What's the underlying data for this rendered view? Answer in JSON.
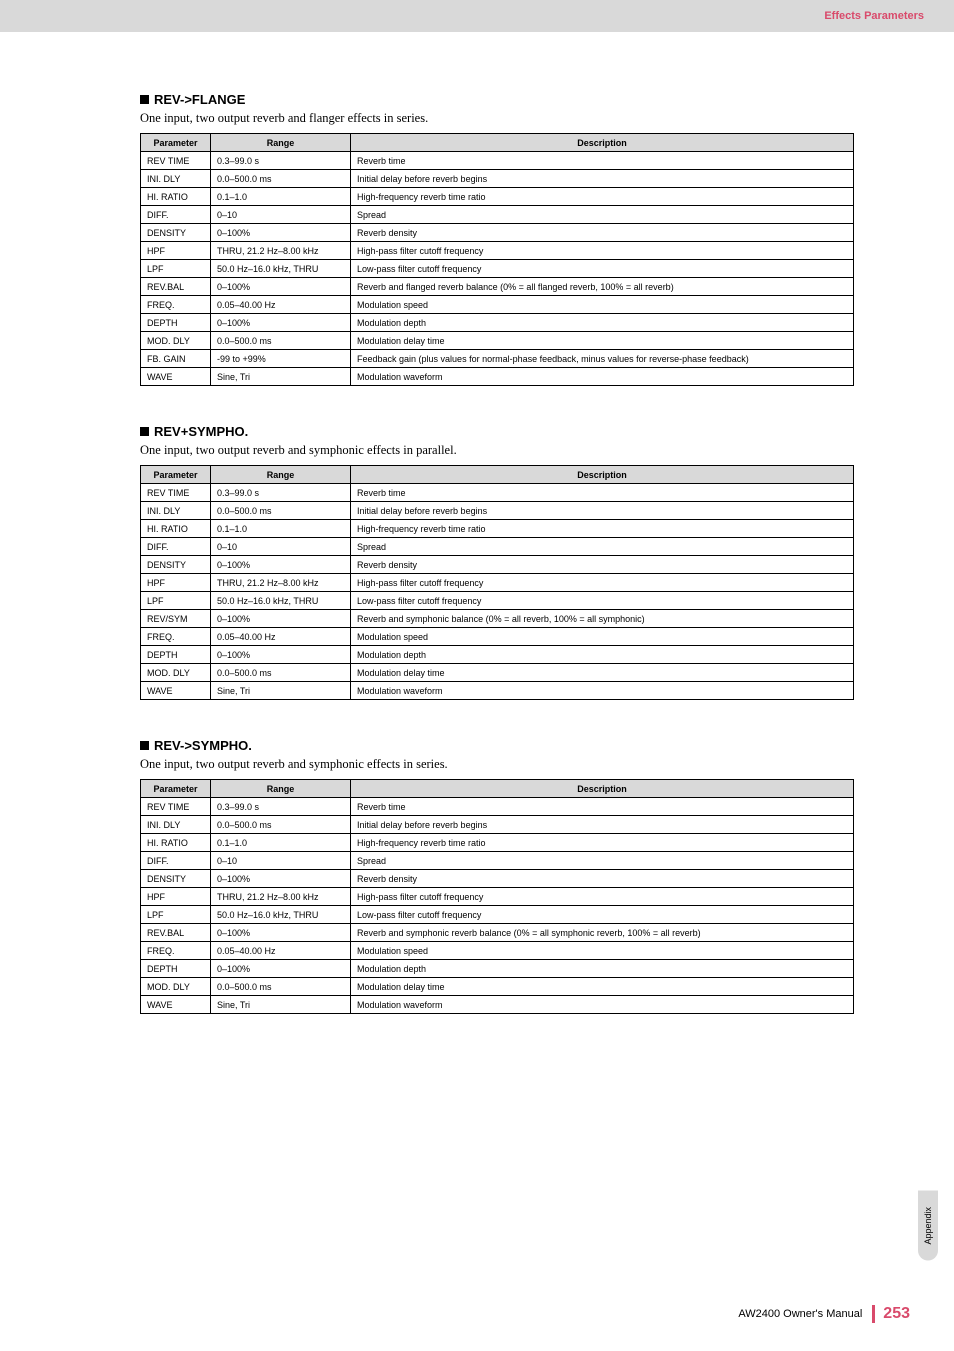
{
  "header": {
    "section": "Effects Parameters"
  },
  "sections": [
    {
      "title": "REV->FLANGE",
      "desc": "One input, two output reverb and flanger effects in series.",
      "cols": [
        "Parameter",
        "Range",
        "Description"
      ],
      "rows": [
        [
          "REV TIME",
          "0.3–99.0 s",
          "Reverb time"
        ],
        [
          "INI. DLY",
          "0.0–500.0 ms",
          "Initial delay before reverb begins"
        ],
        [
          "HI. RATIO",
          "0.1–1.0",
          "High-frequency reverb time ratio"
        ],
        [
          "DIFF.",
          "0–10",
          "Spread"
        ],
        [
          "DENSITY",
          "0–100%",
          "Reverb density"
        ],
        [
          "HPF",
          "THRU, 21.2 Hz–8.00 kHz",
          "High-pass filter cutoff frequency"
        ],
        [
          "LPF",
          "50.0 Hz–16.0 kHz, THRU",
          "Low-pass filter cutoff frequency"
        ],
        [
          "REV.BAL",
          "0–100%",
          "Reverb and flanged reverb balance (0% = all flanged reverb, 100% = all reverb)"
        ],
        [
          "FREQ.",
          "0.05–40.00 Hz",
          "Modulation speed"
        ],
        [
          "DEPTH",
          "0–100%",
          "Modulation depth"
        ],
        [
          "MOD. DLY",
          "0.0–500.0 ms",
          "Modulation delay time"
        ],
        [
          "FB. GAIN",
          "-99 to +99%",
          "Feedback gain (plus values for normal-phase feedback, minus values for reverse-phase feedback)"
        ],
        [
          "WAVE",
          "Sine, Tri",
          "Modulation waveform"
        ]
      ]
    },
    {
      "title": "REV+SYMPHO.",
      "desc": "One input, two output reverb and symphonic effects in parallel.",
      "cols": [
        "Parameter",
        "Range",
        "Description"
      ],
      "rows": [
        [
          "REV TIME",
          "0.3–99.0 s",
          "Reverb time"
        ],
        [
          "INI. DLY",
          "0.0–500.0 ms",
          "Initial delay before reverb begins"
        ],
        [
          "HI. RATIO",
          "0.1–1.0",
          "High-frequency reverb time ratio"
        ],
        [
          "DIFF.",
          "0–10",
          "Spread"
        ],
        [
          "DENSITY",
          "0–100%",
          "Reverb density"
        ],
        [
          "HPF",
          "THRU, 21.2 Hz–8.00 kHz",
          "High-pass filter cutoff frequency"
        ],
        [
          "LPF",
          "50.0 Hz–16.0 kHz, THRU",
          "Low-pass filter cutoff frequency"
        ],
        [
          "REV/SYM",
          "0–100%",
          "Reverb and symphonic balance (0% = all reverb, 100% = all symphonic)"
        ],
        [
          "FREQ.",
          "0.05–40.00 Hz",
          "Modulation speed"
        ],
        [
          "DEPTH",
          "0–100%",
          "Modulation depth"
        ],
        [
          "MOD. DLY",
          "0.0–500.0 ms",
          "Modulation delay time"
        ],
        [
          "WAVE",
          "Sine, Tri",
          "Modulation waveform"
        ]
      ]
    },
    {
      "title": "REV->SYMPHO.",
      "desc": "One input, two output reverb and symphonic effects in series.",
      "cols": [
        "Parameter",
        "Range",
        "Description"
      ],
      "rows": [
        [
          "REV TIME",
          "0.3–99.0 s",
          "Reverb time"
        ],
        [
          "INI. DLY",
          "0.0–500.0 ms",
          "Initial delay before reverb begins"
        ],
        [
          "HI. RATIO",
          "0.1–1.0",
          "High-frequency reverb time ratio"
        ],
        [
          "DIFF.",
          "0–10",
          "Spread"
        ],
        [
          "DENSITY",
          "0–100%",
          "Reverb density"
        ],
        [
          "HPF",
          "THRU, 21.2 Hz–8.00 kHz",
          "High-pass filter cutoff frequency"
        ],
        [
          "LPF",
          "50.0 Hz–16.0 kHz, THRU",
          "Low-pass filter cutoff frequency"
        ],
        [
          "REV.BAL",
          "0–100%",
          "Reverb and symphonic reverb balance (0% = all symphonic reverb, 100% = all reverb)"
        ],
        [
          "FREQ.",
          "0.05–40.00 Hz",
          "Modulation speed"
        ],
        [
          "DEPTH",
          "0–100%",
          "Modulation depth"
        ],
        [
          "MOD. DLY",
          "0.0–500.0 ms",
          "Modulation delay time"
        ],
        [
          "WAVE",
          "Sine, Tri",
          "Modulation waveform"
        ]
      ]
    }
  ],
  "sideTab": "Appendix",
  "footer": {
    "manual": "AW2400  Owner's Manual",
    "page": "253"
  }
}
